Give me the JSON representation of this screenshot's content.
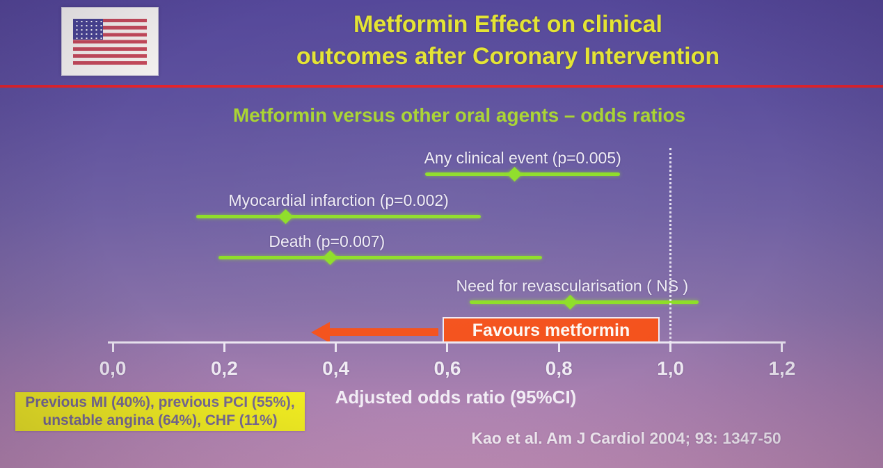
{
  "slide": {
    "title_line1": "Metformin Effect on clinical",
    "title_line2": "outcomes after Coronary Intervention",
    "subtitle": "Metformin versus other oral agents – odds ratios",
    "favours_label": "Favours metformin",
    "note_line1": "Previous MI (40%), previous PCI (55%),",
    "note_line2": "unstable angina (64%), CHF (11%)",
    "citation": "Kao et al. Am J Cardiol 2004; 93: 1347-50",
    "flag_icon": "us-flag-icon"
  },
  "colors": {
    "title_yellow": "#e4e433",
    "subtitle_green": "#a9d431",
    "ci_green": "#8ede27",
    "favours_orange": "#f4521c",
    "note_yellow": "#f1ed20",
    "rule_red": "#e3242c",
    "background_top": "#55489a",
    "background_bottom": "#c390b8"
  },
  "chart_data": {
    "type": "scatter",
    "subtype": "forest-plot",
    "title": "Metformin versus other oral agents – odds ratios",
    "xlabel": "Adjusted odds ratio (95%CI)",
    "xlim": [
      0.0,
      1.2
    ],
    "reference_line": 1.0,
    "reference_line_style": "dotted",
    "grid": false,
    "legend": "none",
    "series": [
      {
        "label": "Any clinical event (p=0.005)",
        "odds_ratio": 0.72,
        "ci_low": 0.56,
        "ci_high": 0.91
      },
      {
        "label": "Myocardial infarction (p=0.002)",
        "odds_ratio": 0.31,
        "ci_low": 0.15,
        "ci_high": 0.66
      },
      {
        "label": "Death (p=0.007)",
        "odds_ratio": 0.39,
        "ci_low": 0.19,
        "ci_high": 0.77
      },
      {
        "label": "Need for revascularisation ( NS )",
        "odds_ratio": 0.82,
        "ci_low": 0.64,
        "ci_high": 1.05
      }
    ],
    "x_ticks": [
      {
        "value": 0.0,
        "label": "0,0"
      },
      {
        "value": 0.2,
        "label": "0,2"
      },
      {
        "value": 0.4,
        "label": "0,4"
      },
      {
        "value": 0.6,
        "label": "0,6"
      },
      {
        "value": 0.8,
        "label": "0,8"
      },
      {
        "value": 1.0,
        "label": "1,0"
      },
      {
        "value": 1.2,
        "label": "1,2"
      }
    ],
    "annotations": [
      "Favours metformin (arrow pointing left toward lower odds ratios)"
    ]
  }
}
